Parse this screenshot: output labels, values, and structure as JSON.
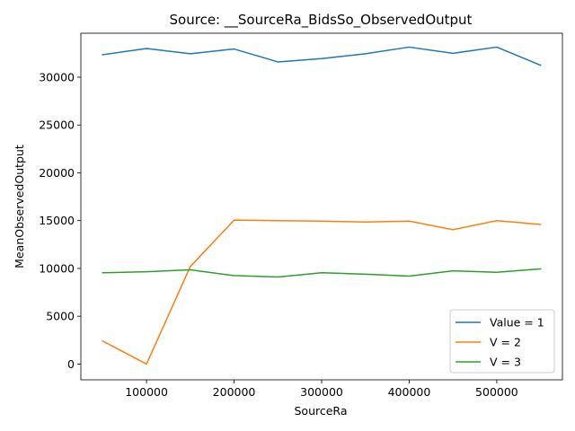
{
  "chart_data": {
    "type": "line",
    "title": "Source: __SourceRa_BidsSo_ObservedOutput",
    "xlabel": "SourceRa",
    "ylabel": "MeanObservedOutput",
    "xlim": [
      25000,
      575000
    ],
    "ylim": [
      -1650,
      34600
    ],
    "xticks": [
      100000,
      200000,
      300000,
      400000,
      500000
    ],
    "yticks": [
      0,
      5000,
      10000,
      15000,
      20000,
      25000,
      30000
    ],
    "grid": false,
    "legend_position": "lower-right",
    "x": [
      50000,
      100000,
      150000,
      200000,
      250000,
      300000,
      350000,
      400000,
      450000,
      500000,
      550000
    ],
    "series": [
      {
        "name": "Value = 1",
        "color": "#1f77b4",
        "values": [
          32350,
          33000,
          32450,
          32950,
          31600,
          31950,
          32450,
          33150,
          32500,
          33150,
          31250
        ]
      },
      {
        "name": "V = 2",
        "color": "#ff7f0e",
        "values": [
          2400,
          0,
          10200,
          15050,
          15000,
          14950,
          14850,
          14950,
          14050,
          15000,
          14600
        ]
      },
      {
        "name": "V = 3",
        "color": "#2ca02c",
        "values": [
          9550,
          9650,
          9850,
          9250,
          9100,
          9550,
          9400,
          9200,
          9750,
          9600,
          9950
        ]
      }
    ]
  }
}
